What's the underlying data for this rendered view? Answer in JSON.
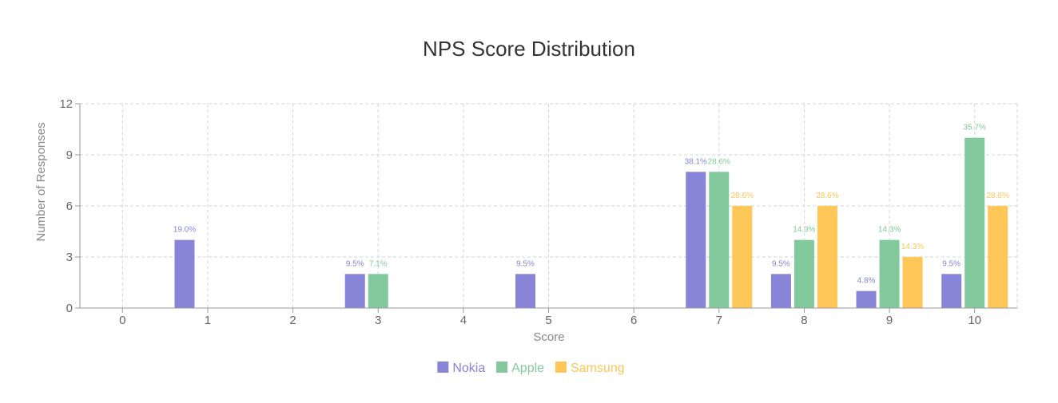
{
  "chart_data": {
    "type": "bar",
    "title": "NPS Score Distribution",
    "xlabel": "Score",
    "ylabel": "Number of Responses",
    "categories": [
      "0",
      "1",
      "2",
      "3",
      "4",
      "5",
      "6",
      "7",
      "8",
      "9",
      "10"
    ],
    "ylim": [
      0,
      12
    ],
    "yticks": [
      "0",
      "3",
      "6",
      "9",
      "12"
    ],
    "grid": true,
    "legend_position": "bottom-center",
    "series": [
      {
        "name": "Nokia",
        "color": "#8884d8",
        "values": [
          0,
          4,
          0,
          2,
          0,
          2,
          0,
          8,
          2,
          1,
          2
        ],
        "labels": [
          "",
          "19.0%",
          "",
          "9.5%",
          "",
          "9.5%",
          "",
          "38.1%",
          "9.5%",
          "4.8%",
          "9.5%"
        ]
      },
      {
        "name": "Apple",
        "color": "#82ca9d",
        "values": [
          0,
          0,
          0,
          2,
          0,
          0,
          0,
          8,
          4,
          4,
          10
        ],
        "labels": [
          "",
          "",
          "",
          "7.1%",
          "",
          "",
          "",
          "28.6%",
          "14.3%",
          "14.3%",
          "35.7%"
        ]
      },
      {
        "name": "Samsung",
        "color": "#ffc658",
        "values": [
          0,
          0,
          0,
          0,
          0,
          0,
          0,
          6,
          6,
          3,
          6
        ],
        "labels": [
          "",
          "",
          "",
          "",
          "",
          "",
          "",
          "28.6%",
          "28.6%",
          "14.3%",
          "28.6%"
        ]
      }
    ]
  }
}
